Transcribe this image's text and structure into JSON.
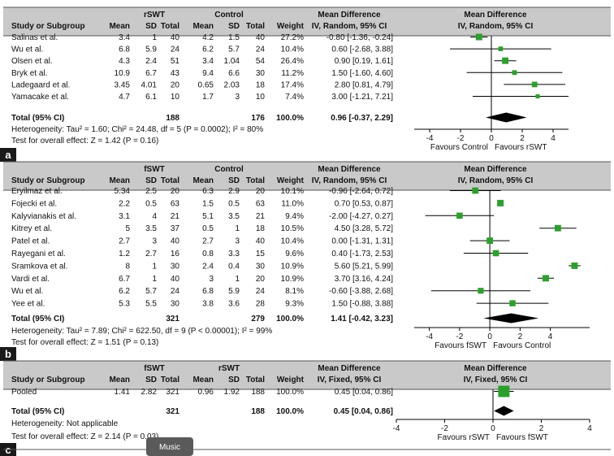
{
  "colors": {
    "header_bg": "#c9c9c9",
    "marker": "#2ca02c",
    "diamond": "#000000",
    "label_bg": "#1a1a1a",
    "overlay_bg": "#5a5a5a"
  },
  "overlay_label": "Music",
  "chart_data": [
    {
      "type": "forest",
      "panel_label": "a",
      "headers": {
        "study": "Study or Subgroup",
        "group1": "rSWT",
        "group2": "Control",
        "mean": "Mean",
        "sd": "SD",
        "total": "Total",
        "weight": "Weight",
        "md": "Mean Difference",
        "method": "IV, Random, 95% CI",
        "plot_title": "Mean Difference",
        "plot_method": "IV, Random, 95% CI"
      },
      "studies": [
        {
          "name": "Salinas et al.",
          "m1": "3.4",
          "sd1": "1",
          "n1": "40",
          "m2": "4.2",
          "sd2": "1.5",
          "n2": "40",
          "weight": "27.2%",
          "ci_text": "-0.80 [-1.36, -0.24]",
          "md": -0.8,
          "lo": -1.36,
          "hi": -0.24,
          "w": 27.2
        },
        {
          "name": "Wu et al.",
          "m1": "6.8",
          "sd1": "5.9",
          "n1": "24",
          "m2": "6.2",
          "sd2": "5.7",
          "n2": "24",
          "weight": "10.4%",
          "ci_text": "0.60 [-2.68, 3.88]",
          "md": 0.6,
          "lo": -2.68,
          "hi": 3.88,
          "w": 10.4
        },
        {
          "name": "Olsen et al.",
          "m1": "4.3",
          "sd1": "2.4",
          "n1": "51",
          "m2": "3.4",
          "sd2": "1.04",
          "n2": "54",
          "weight": "26.4%",
          "ci_text": "0.90 [0.19, 1.61]",
          "md": 0.9,
          "lo": 0.19,
          "hi": 1.61,
          "w": 26.4
        },
        {
          "name": "Bryk et al.",
          "m1": "10.9",
          "sd1": "6.7",
          "n1": "43",
          "m2": "9.4",
          "sd2": "6.6",
          "n2": "30",
          "weight": "11.2%",
          "ci_text": "1.50 [-1.60, 4.60]",
          "md": 1.5,
          "lo": -1.6,
          "hi": 4.6,
          "w": 11.2
        },
        {
          "name": "Ladegaard et al.",
          "m1": "3.45",
          "sd1": "4.01",
          "n1": "20",
          "m2": "0.65",
          "sd2": "2.03",
          "n2": "18",
          "weight": "17.4%",
          "ci_text": "2.80 [0.81, 4.79]",
          "md": 2.8,
          "lo": 0.81,
          "hi": 4.79,
          "w": 17.4
        },
        {
          "name": "Yamacake et al.",
          "m1": "4.7",
          "sd1": "6.1",
          "n1": "10",
          "m2": "1.7",
          "sd2": "3",
          "n2": "10",
          "weight": "7.4%",
          "ci_text": "3.00 [-1.21, 7.21]",
          "md": 3.0,
          "lo": -1.21,
          "hi": 7.21,
          "w": 7.4
        }
      ],
      "total": {
        "label": "Total (95% CI)",
        "n1": "188",
        "n2": "176",
        "weight": "100.0%",
        "ci_text": "0.96 [-0.37, 2.29]",
        "md": 0.96,
        "lo": -0.37,
        "hi": 2.29
      },
      "heterogeneity": "Heterogeneity: Tau² = 1.60; Chi² = 24.48, df = 5 (P = 0.0002); I² = 80%",
      "overall_effect": "Test for overall effect: Z = 1.42 (P = 0.16)",
      "axis": {
        "xlim": [
          -5,
          5
        ],
        "ticks": [
          -4,
          -2,
          0,
          2,
          4
        ],
        "tick_labels": [
          "-4",
          "-2",
          "0",
          "2",
          "4"
        ],
        "favours_left": "Favours Control",
        "favours_right": "Favours rSWT"
      }
    },
    {
      "type": "forest",
      "panel_label": "b",
      "headers": {
        "study": "Study or Subgroup",
        "group1": "fSWT",
        "group2": "Control",
        "mean": "Mean",
        "sd": "SD",
        "total": "Total",
        "weight": "Weight",
        "md": "Mean Difference",
        "method": "IV, Random, 95% CI",
        "plot_title": "Mean Difference",
        "plot_method": "IV, Random, 95% CI"
      },
      "studies": [
        {
          "name": "Eryilmaz et al.",
          "m1": "5.34",
          "sd1": "2.5",
          "n1": "20",
          "m2": "6.3",
          "sd2": "2.9",
          "n2": "20",
          "weight": "10.1%",
          "ci_text": "-0.96 [-2.64, 0.72]",
          "md": -0.96,
          "lo": -2.64,
          "hi": 0.72,
          "w": 10.1
        },
        {
          "name": "Fojecki et al.",
          "m1": "2.2",
          "sd1": "0.5",
          "n1": "63",
          "m2": "1.5",
          "sd2": "0.5",
          "n2": "63",
          "weight": "11.0%",
          "ci_text": "0.70 [0.53, 0.87]",
          "md": 0.7,
          "lo": 0.53,
          "hi": 0.87,
          "w": 11.0
        },
        {
          "name": "Kalyvianakis et al.",
          "m1": "3.1",
          "sd1": "4",
          "n1": "21",
          "m2": "5.1",
          "sd2": "3.5",
          "n2": "21",
          "weight": "9.4%",
          "ci_text": "-2.00 [-4.27, 0.27]",
          "md": -2.0,
          "lo": -4.27,
          "hi": 0.27,
          "w": 9.4
        },
        {
          "name": "Kitrey et al.",
          "m1": "5",
          "sd1": "3.5",
          "n1": "37",
          "m2": "0.5",
          "sd2": "1",
          "n2": "18",
          "weight": "10.5%",
          "ci_text": "4.50 [3.28, 5.72]",
          "md": 4.5,
          "lo": 3.28,
          "hi": 5.72,
          "w": 10.5
        },
        {
          "name": "Patel et al.",
          "m1": "2.7",
          "sd1": "3",
          "n1": "40",
          "m2": "2.7",
          "sd2": "3",
          "n2": "40",
          "weight": "10.4%",
          "ci_text": "0.00 [-1.31, 1.31]",
          "md": 0.0,
          "lo": -1.31,
          "hi": 1.31,
          "w": 10.4
        },
        {
          "name": "Rayegani et al.",
          "m1": "1.2",
          "sd1": "2.7",
          "n1": "16",
          "m2": "0.8",
          "sd2": "3.3",
          "n2": "15",
          "weight": "9.6%",
          "ci_text": "0.40 [-1.73, 2.53]",
          "md": 0.4,
          "lo": -1.73,
          "hi": 2.53,
          "w": 9.6
        },
        {
          "name": "Sramkova et al.",
          "m1": "8",
          "sd1": "1",
          "n1": "30",
          "m2": "2.4",
          "sd2": "0.4",
          "n2": "30",
          "weight": "10.9%",
          "ci_text": "5.60 [5.21, 5.99]",
          "md": 5.6,
          "lo": 5.21,
          "hi": 5.99,
          "w": 10.9
        },
        {
          "name": "Vardi et al.",
          "m1": "6.7",
          "sd1": "1",
          "n1": "40",
          "m2": "3",
          "sd2": "1",
          "n2": "20",
          "weight": "10.9%",
          "ci_text": "3.70 [3.16, 4.24]",
          "md": 3.7,
          "lo": 3.16,
          "hi": 4.24,
          "w": 10.9
        },
        {
          "name": "Wu et al.",
          "m1": "6.2",
          "sd1": "5.7",
          "n1": "24",
          "m2": "6.8",
          "sd2": "5.9",
          "n2": "24",
          "weight": "8.1%",
          "ci_text": "-0.60 [-3.88, 2.68]",
          "md": -0.6,
          "lo": -3.88,
          "hi": 2.68,
          "w": 8.1
        },
        {
          "name": "Yee et al.",
          "m1": "5.3",
          "sd1": "5.5",
          "n1": "30",
          "m2": "3.8",
          "sd2": "3.6",
          "n2": "28",
          "weight": "9.3%",
          "ci_text": "1.50 [-0.88, 3.88]",
          "md": 1.5,
          "lo": -0.88,
          "hi": 3.88,
          "w": 9.3
        }
      ],
      "total": {
        "label": "Total (95% CI)",
        "n1": "321",
        "n2": "279",
        "weight": "100.0%",
        "ci_text": "1.41 [-0.42, 3.23]",
        "md": 1.41,
        "lo": -0.42,
        "hi": 3.23
      },
      "heterogeneity": "Heterogeneity: Tau² = 7.89; Chi² = 622.50, df = 9 (P < 0.00001); I² = 99%",
      "overall_effect": "Test for overall effect: Z = 1.51 (P = 0.13)",
      "axis": {
        "xlim": [
          -5,
          6.6
        ],
        "ticks": [
          -4,
          -2,
          0,
          2,
          4
        ],
        "tick_labels": [
          "-4",
          "-2",
          "0",
          "2",
          "4"
        ],
        "favours_left": "Favours fSWT",
        "favours_right": "Favours Control"
      }
    },
    {
      "type": "forest",
      "panel_label": "c",
      "headers": {
        "study": "Study or Subgroup",
        "group1": "fSWT",
        "group2": "rSWT",
        "mean": "Mean",
        "sd": "SD",
        "total": "Total",
        "weight": "Weight",
        "md": "Mean Difference",
        "method": "IV, Fixed, 95% CI",
        "plot_title": "Mean Difference",
        "plot_method": "IV, Fixed, 95% CI"
      },
      "studies": [
        {
          "name": "Pooled",
          "m1": "1.41",
          "sd1": "2.82",
          "n1": "321",
          "m2": "0.96",
          "sd2": "1.92",
          "n2": "188",
          "weight": "100.0%",
          "ci_text": "0.45 [0.04, 0.86]",
          "md": 0.45,
          "lo": 0.04,
          "hi": 0.86,
          "w": 100.0
        }
      ],
      "total": {
        "label": "Total (95% CI)",
        "n1": "321",
        "n2": "188",
        "weight": "100.0%",
        "ci_text": "0.45 [0.04, 0.86]",
        "md": 0.45,
        "lo": 0.04,
        "hi": 0.86
      },
      "heterogeneity": "Heterogeneity: Not applicable",
      "overall_effect": "Test for overall effect: Z = 2.14 (P = 0.03)",
      "axis": {
        "xlim": [
          -4,
          4
        ],
        "ticks": [
          -4,
          -2,
          0,
          2,
          4
        ],
        "tick_labels": [
          "-4",
          "-2",
          "0",
          "2",
          "4"
        ],
        "favours_left": "Favours rSWT",
        "favours_right": "Favours fSWT"
      }
    }
  ]
}
